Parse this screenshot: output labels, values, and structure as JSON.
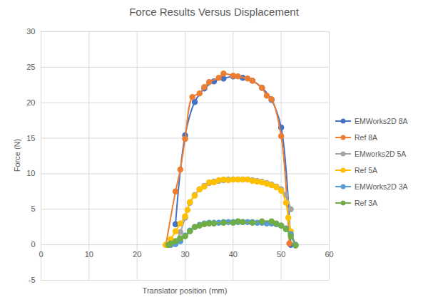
{
  "chart_data": {
    "type": "line",
    "title": "Force Results Versus Displacement",
    "x_label": "Translator position (mm)",
    "y_label": "Force (N)",
    "xlim": [
      0,
      60
    ],
    "xticks": [
      0,
      10,
      20,
      30,
      40,
      50,
      60
    ],
    "ylim": [
      -5,
      30
    ],
    "yticks": [
      -5,
      0,
      5,
      10,
      15,
      20,
      25,
      30
    ],
    "grid": true,
    "legend": "right",
    "marker": "circle",
    "series": [
      {
        "name": "EMWorks2D 8A",
        "color": "#4472c4",
        "x": [
          28,
          30,
          32,
          34,
          36,
          38,
          40,
          42,
          44,
          46,
          48,
          50,
          52
        ],
        "values": [
          2.9,
          15.4,
          20.1,
          22.0,
          23.0,
          23.4,
          23.7,
          23.5,
          23.1,
          22.1,
          20.4,
          16.5,
          0
        ]
      },
      {
        "name": "Ref 8A",
        "color": "#ed7d31",
        "x": [
          26,
          28,
          29,
          30,
          31.5,
          33,
          34,
          35,
          37,
          38,
          40,
          41,
          43,
          44,
          46,
          47,
          48,
          50,
          51.7
        ],
        "values": [
          0,
          7.5,
          10.6,
          14.9,
          20.8,
          21.3,
          22.2,
          22.9,
          23.5,
          24.1,
          23.8,
          23.7,
          23.4,
          23.1,
          22.1,
          21.0,
          20.5,
          15.3,
          0.2
        ]
      },
      {
        "name": "EMworks2D 5A",
        "color": "#a5a5a5",
        "x": [
          27,
          28,
          29,
          30,
          31,
          32,
          33,
          34,
          35,
          36,
          37,
          38,
          39,
          40,
          41,
          42,
          43,
          44,
          45,
          46,
          47,
          48,
          49,
          50,
          51,
          52
        ],
        "values": [
          0,
          0.5,
          1.8,
          3.8,
          5.9,
          7.0,
          7.8,
          8.3,
          8.7,
          8.9,
          9.0,
          9.1,
          9.2,
          9.2,
          9.2,
          9.2,
          9.2,
          9.1,
          9.0,
          8.9,
          8.7,
          8.5,
          8.2,
          7.8,
          7.0,
          5.0
        ]
      },
      {
        "name": "Ref 5A",
        "color": "#ffc000",
        "x": [
          26,
          27,
          28,
          29,
          30,
          30.5,
          31,
          32,
          33,
          34,
          35,
          36,
          37,
          38,
          39,
          40,
          41,
          42,
          43,
          44,
          45,
          46,
          47,
          48,
          49,
          50,
          51,
          51.5,
          52,
          53
        ],
        "values": [
          0,
          0.8,
          1.9,
          3.0,
          4.0,
          4.9,
          6.0,
          6.9,
          7.8,
          8.2,
          8.8,
          8.8,
          9.1,
          9.2,
          9.1,
          9.2,
          9.2,
          9.2,
          9.2,
          9.0,
          8.9,
          8.8,
          8.6,
          8.4,
          8.1,
          7.6,
          5.9,
          3.8,
          1.9,
          0
        ]
      },
      {
        "name": "EMWorks2D 3A",
        "color": "#5b9bd5",
        "x": [
          27,
          28,
          29,
          30,
          31,
          32,
          33,
          34,
          35,
          36,
          37,
          38,
          39,
          40,
          41,
          42,
          43,
          44,
          45,
          46,
          47,
          48,
          49,
          50,
          51,
          52,
          53
        ],
        "values": [
          0,
          0.1,
          0.5,
          1.3,
          2.0,
          2.5,
          2.8,
          3.0,
          3.1,
          3.1,
          3.1,
          3.2,
          3.2,
          3.2,
          3.2,
          3.2,
          3.2,
          3.2,
          3.1,
          3.1,
          3.0,
          3.0,
          2.9,
          2.7,
          2.3,
          1.5,
          0
        ]
      },
      {
        "name": "Ref 3A",
        "color": "#70ad47",
        "x": [
          26.5,
          27,
          28,
          29,
          30,
          31,
          32,
          33,
          34,
          35,
          36,
          38,
          40,
          41,
          42,
          44,
          46,
          48,
          49,
          50,
          51,
          52,
          53
        ],
        "values": [
          0,
          0.2,
          0.5,
          0.9,
          1.2,
          1.9,
          2.5,
          2.7,
          2.9,
          3.0,
          3.0,
          3.1,
          3.1,
          3.3,
          3.2,
          3.1,
          3.3,
          3.3,
          3.0,
          2.7,
          2.2,
          1.2,
          -0.1
        ]
      }
    ]
  }
}
